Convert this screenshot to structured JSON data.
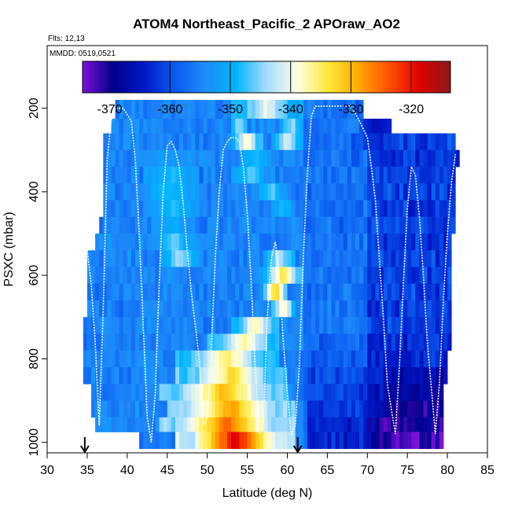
{
  "chart_data": {
    "type": "heatmap",
    "title": "ATOM4 Northeast_Pacific_2 APOraw_AO2",
    "flights_label": "Flts: 12,13",
    "date_label": "MMDD: 0519,0521",
    "xlabel": "Latitude (deg N)",
    "ylabel": "PSXC (mbar)",
    "xlim": [
      30,
      85
    ],
    "ylim": [
      1025,
      50
    ],
    "x_ticks": [
      30,
      35,
      40,
      45,
      50,
      55,
      60,
      65,
      70,
      75,
      80,
      85
    ],
    "y_ticks": [
      1000,
      800,
      600,
      400,
      200
    ],
    "x_tick_labels": [
      "30",
      "35",
      "40",
      "45",
      "50",
      "55",
      "60",
      "65",
      "70",
      "75",
      "80",
      "85"
    ],
    "y_tick_labels": [
      "1000",
      "800",
      "600",
      "400",
      "200"
    ],
    "colorbar": {
      "min": -374.5,
      "max": -313.5,
      "ticks": [
        -370,
        -360,
        -350,
        -340,
        -330,
        -320
      ],
      "tick_labels": [
        "-370",
        "-360",
        "-350",
        "-340",
        "-330",
        "-320"
      ],
      "colors": [
        "#7b12d8",
        "#00008c",
        "#0018c8",
        "#0a5af0",
        "#1e8cfa",
        "#00b4ff",
        "#a6dcff",
        "#ffffe4",
        "#ffe83a",
        "#ffa800",
        "#ff5000",
        "#e00000",
        "#8c1a1a"
      ]
    },
    "arrows_latitude": [
      34.7,
      61.3
    ],
    "cell_latitude_width": 0.5,
    "layers": [
      {
        "p_top": 180,
        "p_bot": 225,
        "lat_start": 38.5,
        "lat_end": 69.5,
        "anomalies": [
          [
            53,
            62,
            -340
          ]
        ]
      },
      {
        "p_top": 225,
        "p_bot": 260,
        "lat_start": 38.0,
        "lat_end": 73.0,
        "anomalies": [
          [
            53,
            55,
            -342
          ],
          [
            59,
            62,
            -344
          ],
          [
            69,
            73,
            -366
          ]
        ]
      },
      {
        "p_top": 260,
        "p_bot": 300,
        "lat_start": 37.0,
        "lat_end": 81.0,
        "anomalies": [
          [
            53,
            57,
            -338
          ],
          [
            58,
            62,
            -340
          ],
          [
            68,
            74,
            -363
          ]
        ]
      },
      {
        "p_top": 300,
        "p_bot": 340,
        "lat_start": 37.0,
        "lat_end": 81.5,
        "anomalies": [
          [
            41,
            49,
            -352
          ],
          [
            54,
            58,
            -348
          ]
        ]
      },
      {
        "p_top": 340,
        "p_bot": 380,
        "lat_start": 37.0,
        "lat_end": 81.0,
        "anomalies": [
          [
            42,
            49,
            -348
          ],
          [
            53,
            58,
            -346
          ]
        ]
      },
      {
        "p_top": 380,
        "p_bot": 420,
        "lat_start": 37.0,
        "lat_end": 81.0,
        "anomalies": [
          [
            41,
            49,
            -348
          ],
          [
            56,
            60,
            -346
          ]
        ]
      },
      {
        "p_top": 420,
        "p_bot": 460,
        "lat_start": 37.0,
        "lat_end": 81.0,
        "anomalies": [
          [
            42,
            49,
            -348
          ],
          [
            58,
            61,
            -348
          ]
        ]
      },
      {
        "p_top": 460,
        "p_bot": 500,
        "lat_start": 36.5,
        "lat_end": 81.0,
        "anomalies": [
          [
            43,
            48,
            -350
          ]
        ]
      },
      {
        "p_top": 500,
        "p_bot": 540,
        "lat_start": 36.0,
        "lat_end": 80.5,
        "anomalies": [
          [
            43,
            49,
            -346
          ]
        ]
      },
      {
        "p_top": 540,
        "p_bot": 580,
        "lat_start": 35.0,
        "lat_end": 80.5,
        "anomalies": [
          [
            44,
            49,
            -344
          ],
          [
            57,
            61,
            -342
          ]
        ]
      },
      {
        "p_top": 580,
        "p_bot": 620,
        "lat_start": 35.0,
        "lat_end": 80.5,
        "anomalies": [
          [
            57,
            62,
            -333
          ]
        ]
      },
      {
        "p_top": 620,
        "p_bot": 660,
        "lat_start": 35.0,
        "lat_end": 80.5,
        "anomalies": [
          [
            57,
            60,
            -330
          ]
        ]
      },
      {
        "p_top": 660,
        "p_bot": 700,
        "lat_start": 35.0,
        "lat_end": 80.5,
        "anomalies": [
          [
            58,
            61,
            -336
          ]
        ]
      },
      {
        "p_top": 700,
        "p_bot": 740,
        "lat_start": 34.5,
        "lat_end": 80.5,
        "anomalies": [
          [
            53,
            59,
            -337
          ]
        ]
      },
      {
        "p_top": 740,
        "p_bot": 780,
        "lat_start": 34.5,
        "lat_end": 80.5,
        "anomalies": [
          [
            50,
            59,
            -336
          ]
        ]
      },
      {
        "p_top": 780,
        "p_bot": 820,
        "lat_start": 34.5,
        "lat_end": 80.0,
        "anomalies": [
          [
            46,
            59,
            -335
          ]
        ]
      },
      {
        "p_top": 820,
        "p_bot": 860,
        "lat_start": 34.5,
        "lat_end": 80.0,
        "anomalies": [
          [
            46,
            60,
            -333
          ]
        ]
      },
      {
        "p_top": 860,
        "p_bot": 900,
        "lat_start": 35.5,
        "lat_end": 79.5,
        "anomalies": [
          [
            44,
            60,
            -330
          ]
        ]
      },
      {
        "p_top": 900,
        "p_bot": 940,
        "lat_start": 35.5,
        "lat_end": 79.5,
        "anomalies": [
          [
            45,
            61,
            -328
          ]
        ]
      },
      {
        "p_top": 940,
        "p_bot": 975,
        "lat_start": 36.0,
        "lat_end": 79.5,
        "anomalies": [
          [
            44,
            61,
            -325
          ],
          [
            71,
            73,
            -373
          ]
        ]
      },
      {
        "p_top": 975,
        "p_bot": 1015,
        "lat_start": 41.5,
        "lat_end": 79.5,
        "anomalies": [
          [
            46,
            61,
            -318
          ]
        ]
      }
    ],
    "flight_track": [
      [
        35.0,
        540
      ],
      [
        35.5,
        620
      ],
      [
        36.0,
        760
      ],
      [
        36.5,
        960
      ],
      [
        37.0,
        680
      ],
      [
        37.5,
        320
      ],
      [
        38.0,
        230
      ],
      [
        38.5,
        200
      ],
      [
        39.5,
        200
      ],
      [
        40.5,
        230
      ],
      [
        41.0,
        320
      ],
      [
        41.5,
        500
      ],
      [
        42.0,
        720
      ],
      [
        42.5,
        940
      ],
      [
        43.0,
        1000
      ],
      [
        43.5,
        880
      ],
      [
        44.0,
        620
      ],
      [
        44.5,
        400
      ],
      [
        45.0,
        290
      ],
      [
        45.5,
        280
      ],
      [
        46.0,
        300
      ],
      [
        46.5,
        340
      ],
      [
        47.0,
        430
      ],
      [
        47.5,
        540
      ],
      [
        48.0,
        640
      ],
      [
        48.5,
        720
      ],
      [
        49.0,
        800
      ],
      [
        49.5,
        960
      ],
      [
        50.0,
        940
      ],
      [
        50.5,
        780
      ],
      [
        51.0,
        560
      ],
      [
        51.5,
        400
      ],
      [
        52.0,
        300
      ],
      [
        52.5,
        280
      ],
      [
        53.0,
        270
      ],
      [
        53.5,
        270
      ],
      [
        54.0,
        280
      ],
      [
        54.5,
        340
      ],
      [
        55.0,
        450
      ],
      [
        55.5,
        620
      ],
      [
        56.0,
        820
      ],
      [
        56.5,
        980
      ],
      [
        57.0,
        960
      ],
      [
        57.5,
        700
      ],
      [
        58.0,
        560
      ],
      [
        58.5,
        520
      ],
      [
        59.0,
        600
      ],
      [
        59.5,
        760
      ],
      [
        60.0,
        880
      ],
      [
        60.5,
        980
      ],
      [
        61.0,
        960
      ],
      [
        61.5,
        820
      ],
      [
        62.0,
        560
      ],
      [
        62.5,
        360
      ],
      [
        63.0,
        220
      ],
      [
        63.5,
        195
      ],
      [
        68.0,
        195
      ],
      [
        69.0,
        230
      ],
      [
        70.0,
        270
      ],
      [
        70.5,
        340
      ],
      [
        71.0,
        420
      ],
      [
        71.5,
        560
      ],
      [
        72.0,
        700
      ],
      [
        72.5,
        860
      ],
      [
        73.5,
        980
      ],
      [
        74.0,
        820
      ],
      [
        74.5,
        620
      ],
      [
        75.0,
        440
      ],
      [
        75.5,
        340
      ],
      [
        76.0,
        360
      ],
      [
        76.5,
        460
      ],
      [
        77.0,
        600
      ],
      [
        77.5,
        760
      ],
      [
        78.5,
        980
      ],
      [
        79.0,
        860
      ],
      [
        79.5,
        660
      ],
      [
        80.0,
        500
      ],
      [
        80.5,
        380
      ],
      [
        81.0,
        310
      ]
    ]
  }
}
